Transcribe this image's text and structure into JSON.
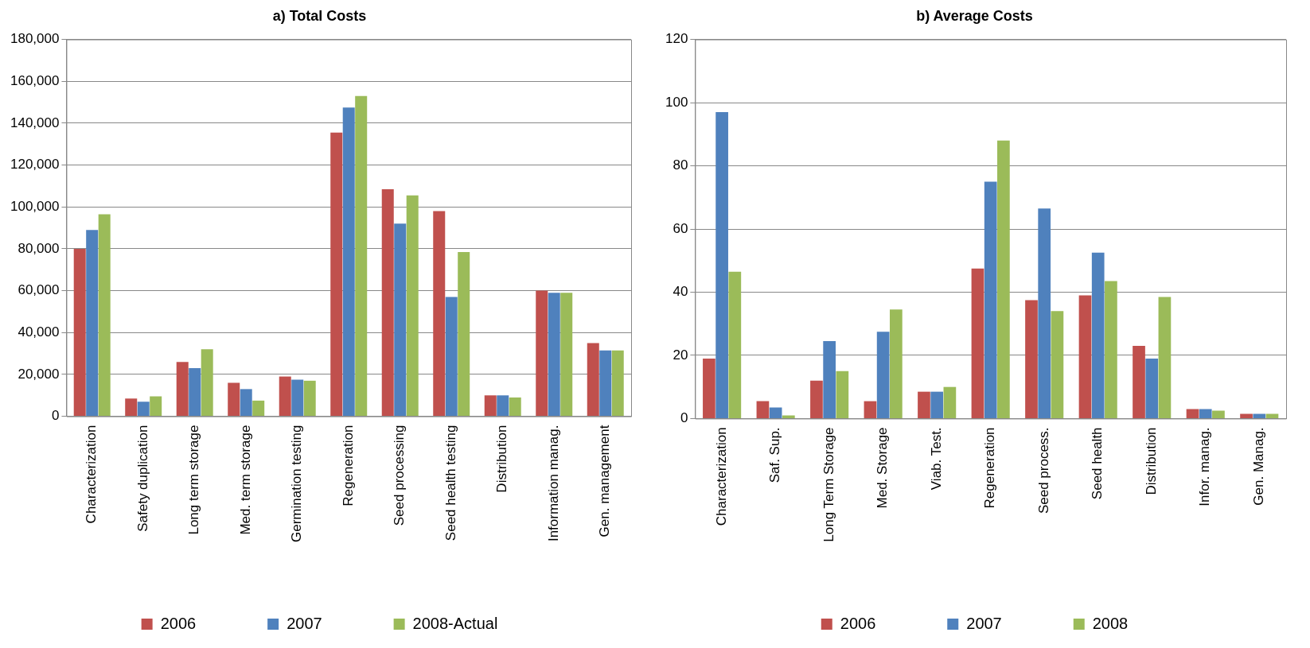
{
  "chart_data": [
    {
      "type": "bar",
      "title": "a) Total Costs",
      "categories": [
        "Characterization",
        "Safety duplication",
        "Long term storage",
        "Med. term storage",
        "Germination testing",
        "Regeneration",
        "Seed processing",
        "Seed health testing",
        "Distribution",
        "Information manag.",
        "Gen. management"
      ],
      "series": [
        {
          "name": "2006",
          "color": "#c0504d",
          "values": [
            80000,
            8500,
            26000,
            16000,
            19000,
            135500,
            108500,
            98000,
            10000,
            60000,
            35000
          ]
        },
        {
          "name": "2007",
          "color": "#4f81bd",
          "values": [
            89000,
            7000,
            23000,
            13000,
            17500,
            147500,
            92000,
            57000,
            10000,
            59000,
            31500
          ]
        },
        {
          "name": "2008-Actual",
          "color": "#9bbb59",
          "values": [
            96500,
            9500,
            32000,
            7500,
            17000,
            153000,
            105500,
            78500,
            9000,
            59000,
            31500
          ]
        }
      ],
      "ylim": [
        0,
        180000
      ],
      "yticks": [
        {
          "value": 0,
          "label": "0"
        },
        {
          "value": 20000,
          "label": "20,000"
        },
        {
          "value": 40000,
          "label": "40,000"
        },
        {
          "value": 60000,
          "label": "60,000"
        },
        {
          "value": 80000,
          "label": "80,000"
        },
        {
          "value": 100000,
          "label": "100,000"
        },
        {
          "value": 120000,
          "label": "120,000"
        },
        {
          "value": 140000,
          "label": "140,000"
        },
        {
          "value": 160000,
          "label": "160,000"
        },
        {
          "value": 180000,
          "label": "180,000"
        }
      ],
      "grid": "y",
      "legend": "bottom"
    },
    {
      "type": "bar",
      "title": "b) Average Costs",
      "categories": [
        "Characterization",
        "Saf. Sup.",
        "Long Term Storage",
        "Med. Storage",
        "Viab. Test.",
        "Regeneration",
        "Seed process.",
        "Seed health",
        "Distribution",
        "Infor. manag.",
        "Gen. Manag."
      ],
      "series": [
        {
          "name": "2006",
          "color": "#c0504d",
          "values": [
            19,
            5.5,
            12,
            5.5,
            8.5,
            47.5,
            37.5,
            39,
            23,
            3,
            1.5
          ]
        },
        {
          "name": "2007",
          "color": "#4f81bd",
          "values": [
            97,
            3.5,
            24.5,
            27.5,
            8.5,
            75,
            66.5,
            52.5,
            19,
            3,
            1.5
          ]
        },
        {
          "name": "2008",
          "color": "#9bbb59",
          "values": [
            46.5,
            1,
            15,
            34.5,
            10,
            88,
            34,
            43.5,
            38.5,
            2.5,
            1.5
          ]
        }
      ],
      "ylim": [
        0,
        120
      ],
      "yticks": [
        0,
        20,
        40,
        60,
        80,
        100,
        120
      ],
      "grid": "y",
      "legend": "bottom"
    }
  ]
}
